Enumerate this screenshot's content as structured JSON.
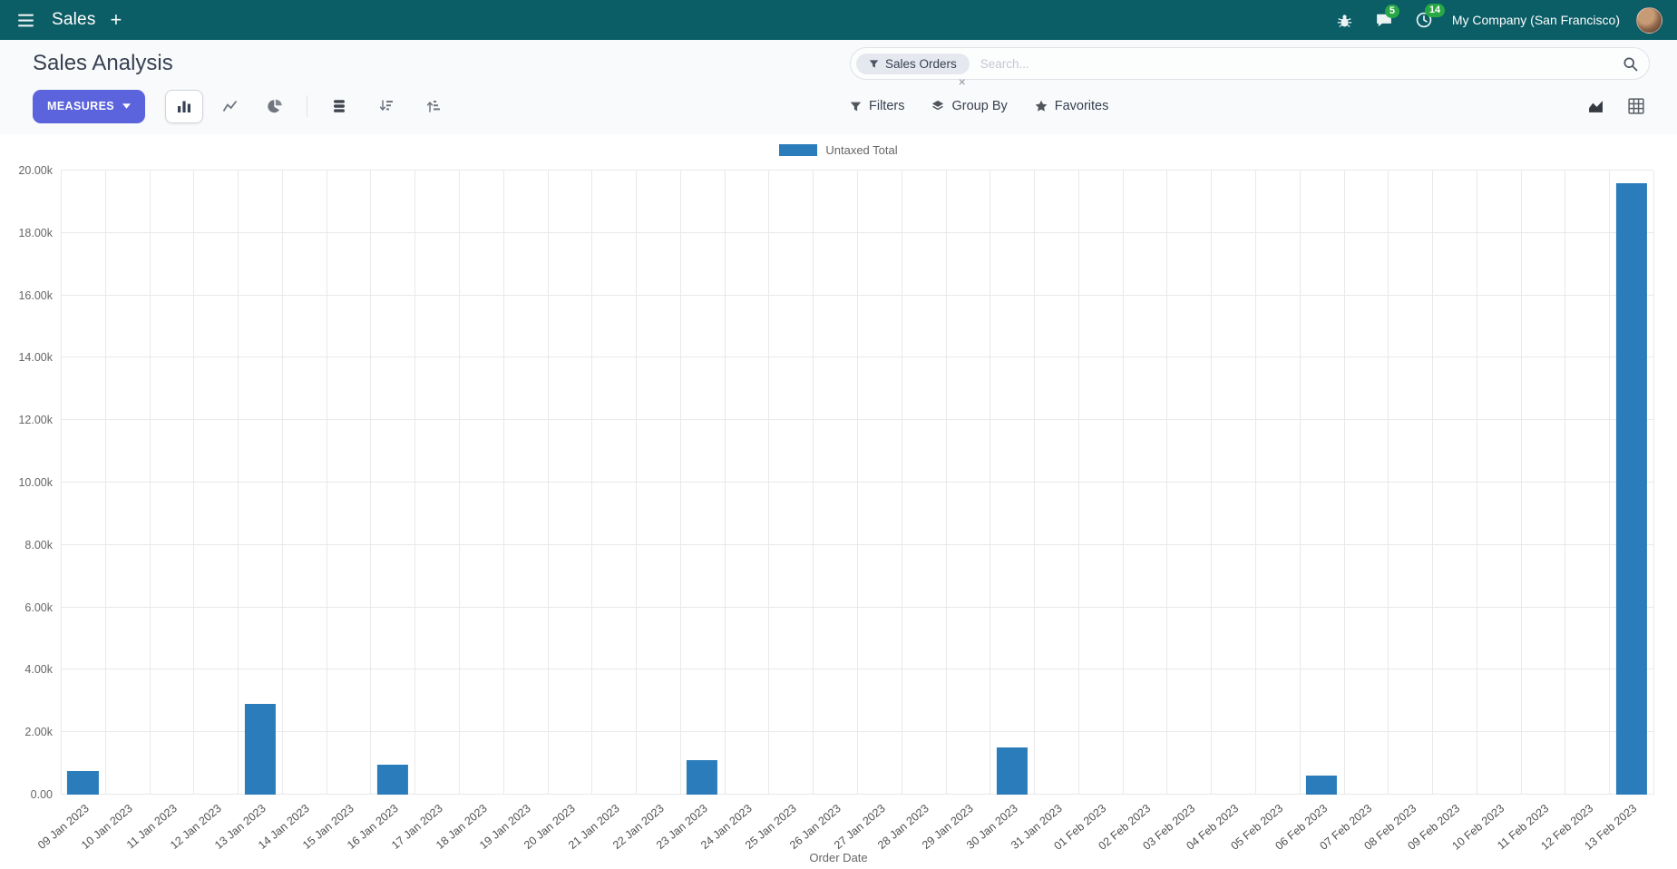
{
  "navbar": {
    "app_name": "Sales",
    "new_tab_label": "+",
    "messages_badge": "5",
    "activities_badge": "14",
    "company": "My Company (San Francisco)"
  },
  "control_panel": {
    "title": "Sales Analysis",
    "measures_label": "Measures",
    "search": {
      "facet_label": "Sales Orders",
      "facet_remove_label": "×",
      "placeholder": "Search..."
    },
    "menus": {
      "filters": "Filters",
      "group_by": "Group By",
      "favorites": "Favorites"
    }
  },
  "chart_data": {
    "type": "bar",
    "title": "",
    "xlabel": "Order Date",
    "ylabel": "",
    "legend_position": "top",
    "grid": true,
    "ylim": [
      0,
      20000
    ],
    "yticks": [
      {
        "value": 0,
        "label": "0.00"
      },
      {
        "value": 2000,
        "label": "2.00k"
      },
      {
        "value": 4000,
        "label": "4.00k"
      },
      {
        "value": 6000,
        "label": "6.00k"
      },
      {
        "value": 8000,
        "label": "8.00k"
      },
      {
        "value": 10000,
        "label": "10.00k"
      },
      {
        "value": 12000,
        "label": "12.00k"
      },
      {
        "value": 14000,
        "label": "14.00k"
      },
      {
        "value": 16000,
        "label": "16.00k"
      },
      {
        "value": 18000,
        "label": "18.00k"
      },
      {
        "value": 20000,
        "label": "20.00k"
      }
    ],
    "categories": [
      "09 Jan 2023",
      "10 Jan 2023",
      "11 Jan 2023",
      "12 Jan 2023",
      "13 Jan 2023",
      "14 Jan 2023",
      "15 Jan 2023",
      "16 Jan 2023",
      "17 Jan 2023",
      "18 Jan 2023",
      "19 Jan 2023",
      "20 Jan 2023",
      "21 Jan 2023",
      "22 Jan 2023",
      "23 Jan 2023",
      "24 Jan 2023",
      "25 Jan 2023",
      "26 Jan 2023",
      "27 Jan 2023",
      "28 Jan 2023",
      "29 Jan 2023",
      "30 Jan 2023",
      "31 Jan 2023",
      "01 Feb 2023",
      "02 Feb 2023",
      "03 Feb 2023",
      "04 Feb 2023",
      "05 Feb 2023",
      "06 Feb 2023",
      "07 Feb 2023",
      "08 Feb 2023",
      "09 Feb 2023",
      "10 Feb 2023",
      "11 Feb 2023",
      "12 Feb 2023",
      "13 Feb 2023"
    ],
    "series": [
      {
        "name": "Untaxed Total",
        "color": "#2b7cba",
        "values": [
          750,
          0,
          0,
          0,
          2900,
          0,
          0,
          950,
          0,
          0,
          0,
          0,
          0,
          0,
          1100,
          0,
          0,
          0,
          0,
          0,
          0,
          1500,
          0,
          0,
          0,
          0,
          0,
          0,
          600,
          0,
          0,
          0,
          0,
          0,
          0,
          19600
        ]
      }
    ]
  },
  "colors": {
    "navbar_bg": "#0b5d66",
    "primary_button": "#5b63dd",
    "badge_green": "#28a745",
    "bar": "#2b7cba"
  }
}
